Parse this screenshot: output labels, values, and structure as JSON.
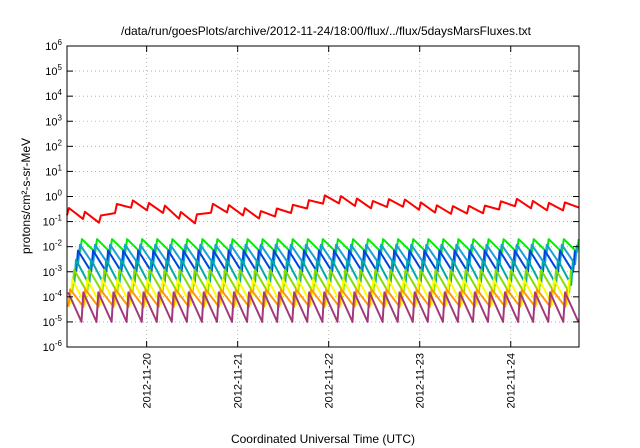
{
  "chart_data": {
    "type": "line",
    "title": "/data/run/goesPlots/archive/2012-11-24/18:00/flux/../flux/5daysMarsFluxes.txt",
    "xlabel": "Coordinated Universal Time (UTC)",
    "ylabel": "protons/cm²-s-sr-MeV",
    "y_scale": "log",
    "ylim": [
      1e-06,
      1000000.0
    ],
    "y_ticks": [
      {
        "value": 1e-06,
        "base": "10",
        "exp": "-6"
      },
      {
        "value": 1e-05,
        "base": "10",
        "exp": "-5"
      },
      {
        "value": 0.0001,
        "base": "10",
        "exp": "-4"
      },
      {
        "value": 0.001,
        "base": "10",
        "exp": "-3"
      },
      {
        "value": 0.01,
        "base": "10",
        "exp": "-2"
      },
      {
        "value": 0.1,
        "base": "10",
        "exp": "-1"
      },
      {
        "value": 1.0,
        "base": "10",
        "exp": "0"
      },
      {
        "value": 10.0,
        "base": "10",
        "exp": "1"
      },
      {
        "value": 100.0,
        "base": "10",
        "exp": "2"
      },
      {
        "value": 1000.0,
        "base": "10",
        "exp": "3"
      },
      {
        "value": 10000.0,
        "base": "10",
        "exp": "4"
      },
      {
        "value": 100000.0,
        "base": "10",
        "exp": "5"
      },
      {
        "value": 1000000.0,
        "base": "10",
        "exp": "6"
      }
    ],
    "xlim": [
      "2012-11-19T03:00",
      "2012-11-24T18:00"
    ],
    "x_ticks": [
      "2012-11-20",
      "2012-11-21",
      "2012-11-22",
      "2012-11-23",
      "2012-11-24"
    ],
    "grid": true,
    "series": [
      {
        "color": "#ff0000",
        "pattern": {
          "low": 0.1,
          "high": 0.5,
          "peaks": 32
        },
        "segments": [
          {
            "x": "2012-11-19T03:00",
            "y": 0.25
          },
          {
            "x": "2012-11-19T12:00",
            "y": 0.12
          },
          {
            "x": "2012-11-19T18:00",
            "y": 0.55
          },
          {
            "x": "2012-11-20T06:00",
            "y": 0.28
          },
          {
            "x": "2012-11-20T12:00",
            "y": 0.1
          },
          {
            "x": "2012-11-20T18:00",
            "y": 0.4
          },
          {
            "x": "2012-11-21T06:00",
            "y": 0.18
          },
          {
            "x": "2012-11-21T12:00",
            "y": 0.25
          },
          {
            "x": "2012-11-21T18:00",
            "y": 0.45
          },
          {
            "x": "2012-11-22T00:00",
            "y": 0.85
          },
          {
            "x": "2012-11-22T12:00",
            "y": 0.45
          },
          {
            "x": "2012-11-22T18:00",
            "y": 0.6
          },
          {
            "x": "2012-11-23T06:00",
            "y": 0.28
          },
          {
            "x": "2012-11-23T18:00",
            "y": 0.3
          },
          {
            "x": "2012-11-24T00:00",
            "y": 0.6
          },
          {
            "x": "2012-11-24T12:00",
            "y": 0.35
          },
          {
            "x": "2012-11-24T18:00",
            "y": 0.5
          }
        ]
      },
      {
        "color": "#00ee00",
        "pattern": {
          "low": 0.006,
          "high": 0.02,
          "peaks": 34
        }
      },
      {
        "color": "#1a9fd8",
        "pattern": {
          "low": 0.002,
          "high": 0.012,
          "peaks": 34
        }
      },
      {
        "color": "#0044dd",
        "pattern": {
          "low": 0.001,
          "high": 0.007,
          "peaks": 34
        }
      },
      {
        "color": "#00aaaa",
        "pattern": {
          "low": 0.0003,
          "high": 0.003,
          "peaks": 34
        }
      },
      {
        "color": "#88dd00",
        "pattern": {
          "low": 0.00015,
          "high": 0.0012,
          "peaks": 34
        }
      },
      {
        "color": "#ffff00",
        "pattern": {
          "low": 5e-05,
          "high": 0.0005,
          "peaks": 34
        }
      },
      {
        "color": "#ff9900",
        "pattern": {
          "low": 4e-05,
          "high": 0.0002,
          "peaks": 34
        }
      },
      {
        "color": "#a23a7a",
        "pattern": {
          "low": 1e-05,
          "high": 0.00015,
          "peaks": 34
        }
      }
    ]
  }
}
